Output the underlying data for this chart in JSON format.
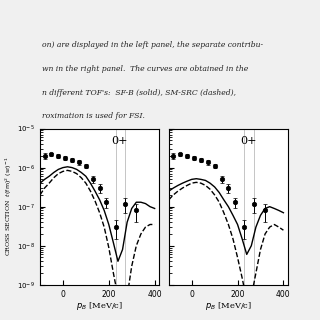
{
  "text_top": [
    "on) are displayed in the left panel, the separate contribu-",
    "wn in the right panel.  The curves are obtained in the",
    "n different TOF's:  SF-B (solid), SM-SRC (dashed),",
    "roximation is used for FSI."
  ],
  "xlabel": "p_B [MeV/c]",
  "ylabel": "CROSS SECTION  t(fm)^2 (sr)^{-1}",
  "panel_label": "0+",
  "xlim": [
    -100,
    420
  ],
  "data_points_x": [
    -80,
    -50,
    -20,
    10,
    40,
    70,
    100,
    130,
    160,
    190,
    230,
    270,
    320
  ],
  "data_points_y": [
    2e-06,
    2.2e-06,
    2e-06,
    1.8e-06,
    1.6e-06,
    1.4e-06,
    1.1e-06,
    5e-07,
    3e-07,
    1.3e-07,
    3e-08,
    1.2e-07,
    8e-08
  ],
  "data_errors_y": [
    3e-07,
    2e-07,
    2e-07,
    2e-07,
    2e-07,
    2e-07,
    1.5e-07,
    1e-07,
    7e-08,
    4e-08,
    1.5e-08,
    5e-08,
    4e-08
  ],
  "vline_positions": [
    230,
    270
  ],
  "solid_x": [
    -100,
    -80,
    -60,
    -40,
    -20,
    0,
    20,
    40,
    60,
    80,
    100,
    120,
    140,
    160,
    180,
    200,
    220,
    240,
    260,
    280,
    300,
    320,
    340,
    360,
    380,
    400
  ],
  "solid_y_left": [
    4e-07,
    5e-07,
    6e-07,
    7.5e-07,
    9e-07,
    1e-06,
    1.05e-06,
    1e-06,
    9e-07,
    7.5e-07,
    6e-07,
    4e-07,
    2.5e-07,
    1.5e-07,
    8e-08,
    3.5e-08,
    1.2e-08,
    4e-09,
    8e-09,
    4e-08,
    9e-08,
    1.3e-07,
    1.3e-07,
    1.2e-07,
    1e-07,
    9e-08
  ],
  "dashed_y_left": [
    2e-07,
    3e-07,
    4e-07,
    5.5e-07,
    7e-07,
    8e-07,
    8.5e-07,
    8e-07,
    7e-07,
    5.5e-07,
    4e-07,
    2.5e-07,
    1.4e-07,
    7e-08,
    3e-08,
    9e-09,
    2e-09,
    5e-10,
    2e-10,
    5e-10,
    3e-09,
    1e-08,
    2e-08,
    3e-08,
    3.5e-08,
    3.5e-08
  ],
  "solid_y_right": [
    2.5e-07,
    3e-07,
    3.5e-07,
    4e-07,
    4.5e-07,
    5e-07,
    5.2e-07,
    5e-07,
    4.7e-07,
    4e-07,
    3.2e-07,
    2.3e-07,
    1.5e-07,
    1e-07,
    6e-08,
    3.5e-08,
    1.5e-08,
    6e-09,
    1e-08,
    3e-08,
    6e-08,
    9e-08,
    1e-07,
    9e-08,
    8e-08,
    7e-08
  ],
  "dashed_y_right": [
    1.5e-07,
    2e-07,
    2.5e-07,
    3e-07,
    3.5e-07,
    4e-07,
    4.2e-07,
    4e-07,
    3.5e-07,
    2.8e-07,
    2e-07,
    1.3e-07,
    7e-08,
    3.5e-08,
    1.5e-08,
    5e-09,
    1.5e-09,
    4e-10,
    5e-10,
    2e-09,
    8e-09,
    2e-08,
    3e-08,
    3.5e-08,
    3e-08,
    2.5e-08
  ],
  "background_color": "#f0f0f0",
  "panel_bg": "#ffffff",
  "dot_color": "#000000",
  "line_color": "#000000",
  "vline_color": "#bbbbbb"
}
